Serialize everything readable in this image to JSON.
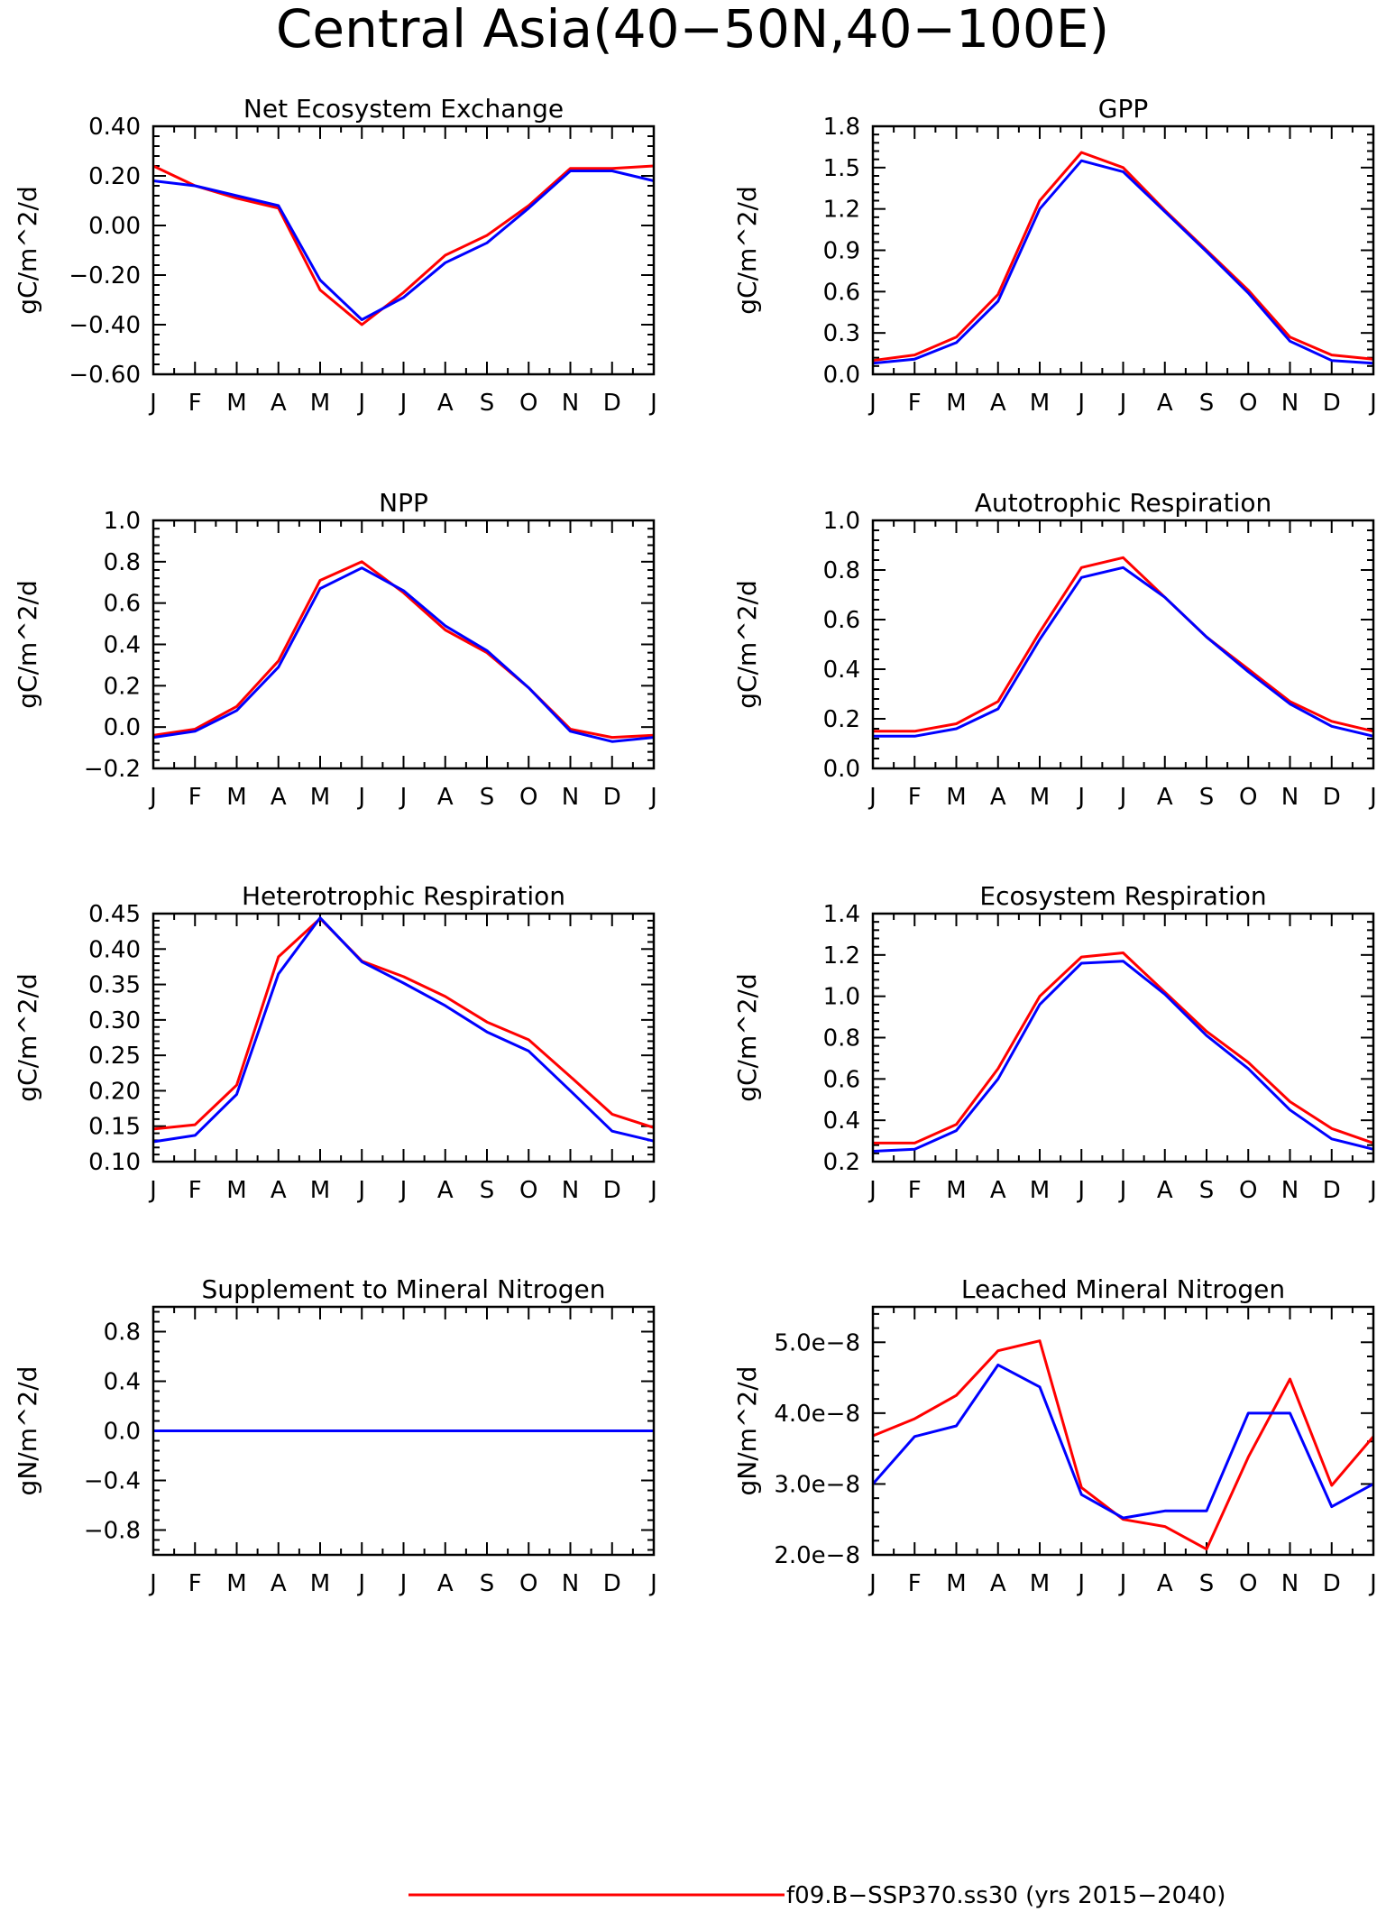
{
  "title": "Central Asia(40−50N,40−100E)",
  "colors": {
    "red": "#ff0000",
    "blue": "#0000ff"
  },
  "legend": {
    "red_label": "f09.B−SSP370.ss30 (yrs 2015−2040)"
  },
  "chart_data": [
    {
      "type": "line",
      "title": "Net Ecosystem Exchange",
      "ylabel": "gC/m^2/d",
      "ylim": [
        -0.6,
        0.4
      ],
      "yticks": [
        -0.6,
        -0.4,
        -0.2,
        0.0,
        0.2,
        0.4
      ],
      "ytick_labels": [
        "−0.60",
        "−0.40",
        "−0.20",
        "0.00",
        "0.20",
        "0.40"
      ],
      "categories": [
        "J",
        "F",
        "M",
        "A",
        "M",
        "J",
        "J",
        "A",
        "S",
        "O",
        "N",
        "D",
        "J"
      ],
      "series": [
        {
          "color": "#ff0000",
          "values": [
            0.24,
            0.16,
            0.11,
            0.07,
            -0.26,
            -0.4,
            -0.27,
            -0.12,
            -0.04,
            0.08,
            0.23,
            0.23,
            0.24
          ]
        },
        {
          "color": "#0000ff",
          "values": [
            0.18,
            0.16,
            0.12,
            0.08,
            -0.22,
            -0.38,
            -0.29,
            -0.15,
            -0.07,
            0.07,
            0.22,
            0.22,
            0.18
          ]
        }
      ]
    },
    {
      "type": "line",
      "title": "GPP",
      "ylabel": "gC/m^2/d",
      "ylim": [
        0,
        1.8
      ],
      "yticks": [
        0,
        0.3,
        0.6,
        0.9,
        1.2,
        1.5,
        1.8
      ],
      "ytick_labels": [
        "0.0",
        "0.3",
        "0.6",
        "0.9",
        "1.2",
        "1.5",
        "1.8"
      ],
      "categories": [
        "J",
        "F",
        "M",
        "A",
        "M",
        "J",
        "J",
        "A",
        "S",
        "O",
        "N",
        "D",
        "J"
      ],
      "series": [
        {
          "color": "#ff0000",
          "values": [
            0.1,
            0.14,
            0.27,
            0.58,
            1.26,
            1.61,
            1.5,
            1.19,
            0.9,
            0.61,
            0.27,
            0.14,
            0.11
          ]
        },
        {
          "color": "#0000ff",
          "values": [
            0.08,
            0.11,
            0.23,
            0.53,
            1.2,
            1.55,
            1.47,
            1.18,
            0.89,
            0.59,
            0.24,
            0.1,
            0.08
          ]
        }
      ]
    },
    {
      "type": "line",
      "title": "NPP",
      "ylabel": "gC/m^2/d",
      "ylim": [
        -0.2,
        1.0
      ],
      "yticks": [
        -0.2,
        0,
        0.2,
        0.4,
        0.6,
        0.8,
        1.0
      ],
      "ytick_labels": [
        "−0.2",
        "0.0",
        "0.2",
        "0.4",
        "0.6",
        "0.8",
        "1.0"
      ],
      "categories": [
        "J",
        "F",
        "M",
        "A",
        "M",
        "J",
        "J",
        "A",
        "S",
        "O",
        "N",
        "D",
        "J"
      ],
      "series": [
        {
          "color": "#ff0000",
          "values": [
            -0.04,
            -0.01,
            0.1,
            0.32,
            0.71,
            0.8,
            0.65,
            0.47,
            0.36,
            0.19,
            -0.01,
            -0.05,
            -0.04
          ]
        },
        {
          "color": "#0000ff",
          "values": [
            -0.05,
            -0.02,
            0.08,
            0.29,
            0.67,
            0.77,
            0.66,
            0.49,
            0.37,
            0.19,
            -0.02,
            -0.07,
            -0.05
          ]
        }
      ]
    },
    {
      "type": "line",
      "title": "Autotrophic Respiration",
      "ylabel": "gC/m^2/d",
      "ylim": [
        0,
        1.0
      ],
      "yticks": [
        0,
        0.2,
        0.4,
        0.6,
        0.8,
        1.0
      ],
      "ytick_labels": [
        "0.0",
        "0.2",
        "0.4",
        "0.6",
        "0.8",
        "1.0"
      ],
      "categories": [
        "J",
        "F",
        "M",
        "A",
        "M",
        "J",
        "J",
        "A",
        "S",
        "O",
        "N",
        "D",
        "J"
      ],
      "series": [
        {
          "color": "#ff0000",
          "values": [
            0.15,
            0.15,
            0.18,
            0.27,
            0.55,
            0.81,
            0.85,
            0.69,
            0.53,
            0.4,
            0.27,
            0.19,
            0.15
          ]
        },
        {
          "color": "#0000ff",
          "values": [
            0.13,
            0.13,
            0.16,
            0.24,
            0.52,
            0.77,
            0.81,
            0.69,
            0.53,
            0.39,
            0.26,
            0.17,
            0.13
          ]
        }
      ]
    },
    {
      "type": "line",
      "title": "Heterotrophic Respiration",
      "ylabel": "gC/m^2/d",
      "ylim": [
        0.1,
        0.45
      ],
      "yticks": [
        0.1,
        0.15,
        0.2,
        0.25,
        0.3,
        0.35,
        0.4,
        0.45
      ],
      "ytick_labels": [
        "0.10",
        "0.15",
        "0.20",
        "0.25",
        "0.30",
        "0.35",
        "0.40",
        "0.45"
      ],
      "categories": [
        "J",
        "F",
        "M",
        "A",
        "M",
        "J",
        "J",
        "A",
        "S",
        "O",
        "N",
        "D",
        "J"
      ],
      "series": [
        {
          "color": "#ff0000",
          "values": [
            0.146,
            0.152,
            0.208,
            0.389,
            0.443,
            0.383,
            0.361,
            0.333,
            0.297,
            0.272,
            0.22,
            0.167,
            0.148
          ]
        },
        {
          "color": "#0000ff",
          "values": [
            0.128,
            0.137,
            0.195,
            0.365,
            0.444,
            0.382,
            0.352,
            0.32,
            0.283,
            0.256,
            0.2,
            0.143,
            0.129
          ]
        }
      ]
    },
    {
      "type": "line",
      "title": "Ecosystem Respiration",
      "ylabel": "gC/m^2/d",
      "ylim": [
        0.2,
        1.4
      ],
      "yticks": [
        0.2,
        0.4,
        0.6,
        0.8,
        1.0,
        1.2,
        1.4
      ],
      "ytick_labels": [
        "0.2",
        "0.4",
        "0.6",
        "0.8",
        "1.0",
        "1.2",
        "1.4"
      ],
      "categories": [
        "J",
        "F",
        "M",
        "A",
        "M",
        "J",
        "J",
        "A",
        "S",
        "O",
        "N",
        "D",
        "J"
      ],
      "series": [
        {
          "color": "#ff0000",
          "values": [
            0.29,
            0.29,
            0.38,
            0.65,
            1.0,
            1.19,
            1.21,
            1.02,
            0.83,
            0.68,
            0.49,
            0.36,
            0.29
          ]
        },
        {
          "color": "#0000ff",
          "values": [
            0.25,
            0.26,
            0.35,
            0.6,
            0.96,
            1.16,
            1.17,
            1.01,
            0.81,
            0.65,
            0.45,
            0.31,
            0.26
          ]
        }
      ]
    },
    {
      "type": "line",
      "title": "Supplement to Mineral Nitrogen",
      "ylabel": "gN/m^2/d",
      "ylim": [
        -1.0,
        1.0
      ],
      "yticks": [
        -0.8,
        -0.4,
        0,
        0.4,
        0.8
      ],
      "ytick_labels": [
        "−0.8",
        "−0.4",
        "0.0",
        "0.4",
        "0.8"
      ],
      "categories": [
        "J",
        "F",
        "M",
        "A",
        "M",
        "J",
        "J",
        "A",
        "S",
        "O",
        "N",
        "D",
        "J"
      ],
      "series": [
        {
          "color": "#ff0000",
          "values": [
            0,
            0,
            0,
            0,
            0,
            0,
            0,
            0,
            0,
            0,
            0,
            0,
            0
          ]
        },
        {
          "color": "#0000ff",
          "values": [
            0,
            0,
            0,
            0,
            0,
            0,
            0,
            0,
            0,
            0,
            0,
            0,
            0
          ]
        }
      ]
    },
    {
      "type": "line",
      "title": "Leached Mineral Nitrogen",
      "ylabel": "gN/m^2/d",
      "ylim": [
        2e-08,
        5.5e-08
      ],
      "yticks": [
        2e-08,
        3e-08,
        4e-08,
        5e-08
      ],
      "ytick_labels": [
        "2.0e−8",
        "3.0e−8",
        "4.0e−8",
        "5.0e−8"
      ],
      "categories": [
        "J",
        "F",
        "M",
        "A",
        "M",
        "J",
        "J",
        "A",
        "S",
        "O",
        "N",
        "D",
        "J"
      ],
      "series": [
        {
          "color": "#ff0000",
          "values": [
            3.68e-08,
            3.92e-08,
            4.25e-08,
            4.88e-08,
            5.02e-08,
            2.95e-08,
            2.5e-08,
            2.4e-08,
            2.08e-08,
            3.38e-08,
            4.48e-08,
            2.98e-08,
            3.67e-08
          ]
        },
        {
          "color": "#0000ff",
          "values": [
            3e-08,
            3.67e-08,
            3.82e-08,
            4.68e-08,
            4.37e-08,
            2.85e-08,
            2.52e-08,
            2.62e-08,
            2.62e-08,
            4e-08,
            4e-08,
            2.68e-08,
            3e-08
          ]
        }
      ]
    }
  ]
}
